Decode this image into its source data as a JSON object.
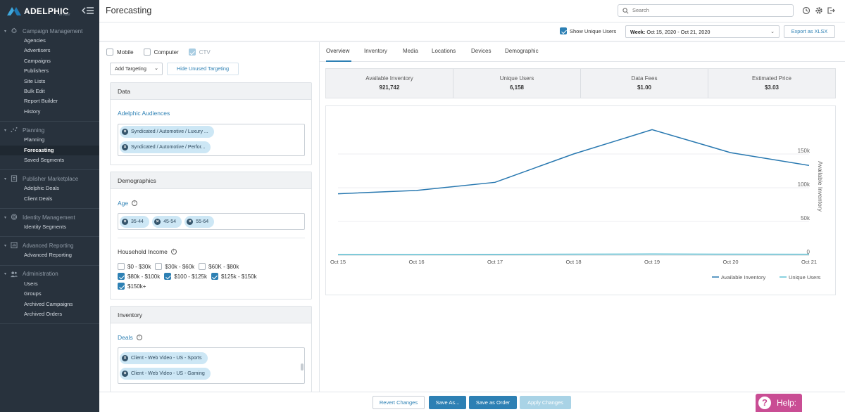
{
  "brand": {
    "name": "ADELPHIC",
    "sub": "BY VIANT"
  },
  "sidebar": {
    "sections": [
      {
        "title": "Campaign Management",
        "icon": "gear-icon",
        "items": [
          "Agencies",
          "Advertisers",
          "Campaigns",
          "Publishers",
          "Site Lists",
          "Bulk Edit",
          "Report Builder",
          "History"
        ]
      },
      {
        "title": "Planning",
        "icon": "scatter-icon",
        "items": [
          "Planning",
          "Forecasting",
          "Saved Segments"
        ]
      },
      {
        "title": "Publisher Marketplace",
        "icon": "document-icon",
        "items": [
          "Adelphic Deals",
          "Client Deals"
        ]
      },
      {
        "title": "Identity Management",
        "icon": "fingerprint-icon",
        "items": [
          "Identity Segments"
        ]
      },
      {
        "title": "Advanced Reporting",
        "icon": "report-icon",
        "items": [
          "Advanced Reporting"
        ]
      },
      {
        "title": "Administration",
        "icon": "users-icon",
        "items": [
          "Users",
          "Groups",
          "Archived Campaigns",
          "Archived Orders"
        ]
      }
    ],
    "active_item": "Forecasting"
  },
  "header": {
    "title": "Forecasting",
    "search_placeholder": "Search"
  },
  "controls": {
    "show_unique_users": "Show Unique Users",
    "week_label": "Week:",
    "week_value": "Oct 15, 2020 - Oct 21, 2020",
    "export": "Export as XLSX"
  },
  "devices": {
    "mobile": "Mobile",
    "computer": "Computer",
    "ctv": "CTV"
  },
  "targeting": {
    "add": "Add Targeting",
    "hide_unused": "Hide Unused Targeting"
  },
  "data_card": {
    "title": "Data",
    "audiences_label": "Adelphic Audiences",
    "audiences": [
      "Syndicated / Automotive / Luxury ...",
      "Syndicated / Automotive / Perfor..."
    ]
  },
  "demographics_card": {
    "title": "Demographics",
    "age_label": "Age",
    "ages": [
      "35-44",
      "45-54",
      "55-64"
    ],
    "income_label": "Household Income",
    "income": [
      {
        "label": "$0 - $30k",
        "checked": false
      },
      {
        "label": "$30k - $60k",
        "checked": false
      },
      {
        "label": "$60K - $80k",
        "checked": false
      },
      {
        "label": "$80k - $100k",
        "checked": true
      },
      {
        "label": "$100 - $125k",
        "checked": true
      },
      {
        "label": "$125k - $150k",
        "checked": true
      },
      {
        "label": "$150k+",
        "checked": true
      }
    ]
  },
  "inventory_card": {
    "title": "Inventory",
    "deals_label": "Deals",
    "deals": [
      "Client - Web Video - US - Sports",
      "Client - Web Video - US - Gaming"
    ]
  },
  "tabs": [
    "Overview",
    "Inventory",
    "Media",
    "Locations",
    "Devices",
    "Demographic"
  ],
  "stats": [
    {
      "label": "Available Inventory",
      "value": "921,742"
    },
    {
      "label": "Unique Users",
      "value": "6,158"
    },
    {
      "label": "Data Fees",
      "value": "$1.00"
    },
    {
      "label": "Estimated Price",
      "value": "$3.03"
    }
  ],
  "chart_data": {
    "type": "line",
    "x": [
      "Oct 15",
      "Oct 16",
      "Oct 17",
      "Oct 18",
      "Oct 19",
      "Oct 20",
      "Oct 21"
    ],
    "series": [
      {
        "name": "Available Inventory",
        "values": [
          91000,
          96000,
          108000,
          150000,
          186000,
          152000,
          133000
        ],
        "color": "#2878b0"
      },
      {
        "name": "Unique Users",
        "values": [
          1200,
          1100,
          1300,
          1500,
          1800,
          1500,
          1400
        ],
        "color": "#62c3d6"
      }
    ],
    "ylabel": "Available Inventory",
    "yticks": [
      "0",
      "50k",
      "100k",
      "150k"
    ],
    "ylim": [
      0,
      200000
    ],
    "legend": "bottom-right",
    "grid": true
  },
  "footer": {
    "revert": "Revert Changes",
    "save_as": "Save As...",
    "save_order": "Save as Order",
    "apply": "Apply Changes"
  },
  "help": {
    "label": "Help:"
  }
}
